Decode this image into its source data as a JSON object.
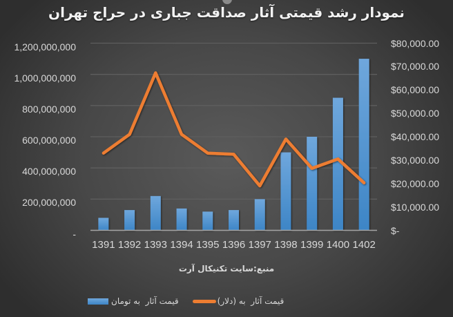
{
  "title": "نمودار رشد قیمتی آثار صداقت جباری در حراج تهران",
  "source": "منبع:سایت تکنیکال آرت",
  "colors": {
    "bar_top": "#6fa7dc",
    "bar_bottom": "#3d85c6",
    "line": "#ed7d31",
    "grid": "#5e5e5e",
    "axis": "#a6a6a6",
    "text": "#d9d9d9"
  },
  "legend": [
    {
      "label": "قیمت آثار  به تومان",
      "type": "bar"
    },
    {
      "label": "قیمت آثار  به (دلار)",
      "type": "line"
    }
  ],
  "left_axis": {
    "ticks": [
      "1,200,000,000",
      "1,000,000,000",
      "800,000,000",
      "600,000,000",
      "400,000,000",
      "200,000,000",
      "-"
    ]
  },
  "right_axis": {
    "ticks": [
      "$80,000.00",
      "$70,000.00",
      "$60,000.00",
      "$50,000.00",
      "$40,000.00",
      "$30,000.00",
      "$20,000.00",
      "$10,000.00",
      "$-"
    ]
  },
  "x_axis": {
    "ticks": [
      "1391",
      "1392",
      "1393",
      "1394",
      "1395",
      "1396",
      "1397",
      "1398",
      "1399",
      "1400",
      "1402"
    ]
  },
  "chart_data": {
    "type": "bar+line",
    "title": "نمودار رشد قیمتی آثار صداقت جباری در حراج تهران",
    "subtitle": "منبع:سایت تکنیکال آرت",
    "categories": [
      "1391",
      "1392",
      "1393",
      "1394",
      "1395",
      "1396",
      "1397",
      "1398",
      "1399",
      "1400",
      "1402"
    ],
    "series": [
      {
        "name": "قیمت آثار  به تومان",
        "type": "bar",
        "axis": "left",
        "values": [
          80000000,
          130000000,
          220000000,
          140000000,
          120000000,
          130000000,
          200000000,
          500000000,
          600000000,
          850000000,
          1100000000
        ]
      },
      {
        "name": "قیمت آثار  به (دلار)",
        "type": "line",
        "axis": "right",
        "values": [
          33000,
          41000,
          67300,
          41000,
          33000,
          32500,
          19000,
          39000,
          26500,
          30500,
          20300
        ]
      }
    ],
    "xlabel": "",
    "ylabel_left": "",
    "ylabel_right": "",
    "ylim_left": [
      0,
      1200000000
    ],
    "ylim_right": [
      0,
      80000
    ],
    "grid": true,
    "legend_position": "bottom"
  }
}
